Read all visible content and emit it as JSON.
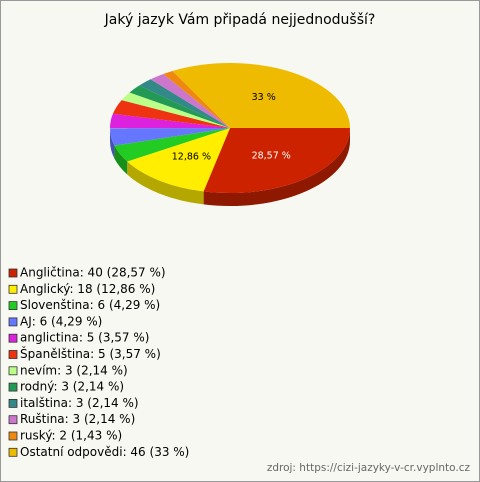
{
  "chart_data": {
    "type": "pie",
    "title": "Jaký jazyk Vám připadá nejjednodušší?",
    "categories": [
      "Angličtina",
      "Anglický",
      "Slovenština",
      "AJ",
      "anglictina",
      "Španělština",
      "nevím",
      "rodný",
      "italština",
      "Ruština",
      "ruský",
      "Ostatní odpovědi"
    ],
    "legend_labels": [
      "Angličtina: 40 (28,57 %)",
      "Anglický: 18 (12,86 %)",
      "Slovenština: 6 (4,29 %)",
      "AJ: 6 (4,29 %)",
      "anglictina: 5 (3,57 %)",
      "Španělština: 5 (3,57 %)",
      "nevím: 3 (2,14 %)",
      "rodný: 3 (2,14 %)",
      "italština: 3 (2,14 %)",
      "Ruština: 3 (2,14 %)",
      "ruský: 2 (1,43 %)",
      "Ostatní odpovědi: 46 (33 %)"
    ],
    "values": [
      28.57,
      12.86,
      4.29,
      4.29,
      3.57,
      3.57,
      2.14,
      2.14,
      2.14,
      2.14,
      1.43,
      33
    ],
    "value_labels": [
      "28,57 %",
      "12,86 %",
      null,
      null,
      null,
      null,
      null,
      null,
      null,
      null,
      null,
      "33 %"
    ],
    "colors": [
      "#cc2200",
      "#ffee00",
      "#22cc22",
      "#6677ff",
      "#dd22dd",
      "#ee3311",
      "#bbff88",
      "#229955",
      "#338888",
      "#cc77cc",
      "#ee8811",
      "#eebb00"
    ],
    "legend": "bottom-left",
    "source": "zdroj: https://cizi-jazyky-v-cr.vyplnto.cz"
  }
}
